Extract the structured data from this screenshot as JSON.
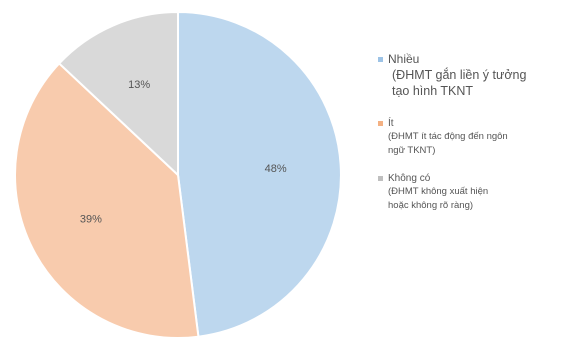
{
  "chart_data": {
    "type": "pie",
    "categories": [
      "Nhiều",
      "Ít",
      "Không có"
    ],
    "values": [
      48,
      39,
      13
    ],
    "value_labels": [
      "48%",
      "39%",
      "13%"
    ],
    "descriptions": [
      "(ĐHMT gắn liền ý tưởng\ntạo hình TKNT",
      "(ĐHMT ít tác động đến ngôn\nngữ TKNT)",
      "(ĐHMT không xuất hiện\nhoặc không rõ ràng)"
    ],
    "colors": [
      "#bdd7ee",
      "#f8cbad",
      "#d9d9d9"
    ],
    "border_colors": [
      "#9dc3e6",
      "#f4b183",
      "#bfbfbf"
    ],
    "start_angle": "12 o'clock",
    "direction": "clockwise",
    "legend_position": "right",
    "title": "",
    "xlabel": "",
    "ylabel": ""
  }
}
